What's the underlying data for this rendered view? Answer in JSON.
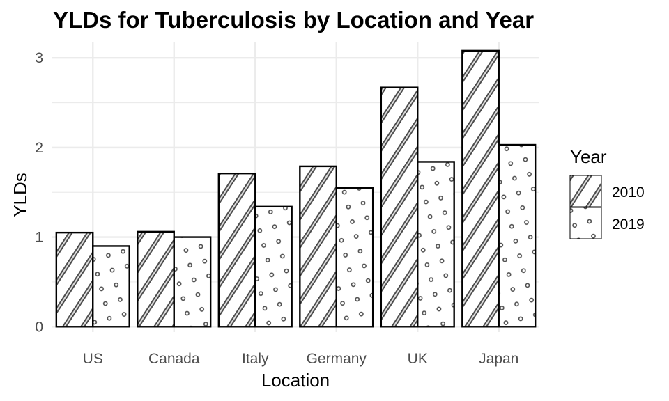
{
  "chart_data": {
    "type": "bar",
    "title": "YLDs for Tuberculosis by Location and Year",
    "xlabel": "Location",
    "ylabel": "YLDs",
    "categories": [
      "US",
      "Canada",
      "Italy",
      "Germany",
      "UK",
      "Japan"
    ],
    "series": [
      {
        "name": "2010",
        "values": [
          1.05,
          1.06,
          1.71,
          1.79,
          2.67,
          3.08
        ],
        "pattern": "stripe"
      },
      {
        "name": "2019",
        "values": [
          0.9,
          1.0,
          1.34,
          1.55,
          1.84,
          2.03
        ],
        "pattern": "dots"
      }
    ],
    "yticks": [
      "0",
      "1",
      "2",
      "3"
    ],
    "ylim": [
      -0.06,
      3.18
    ],
    "grid": true,
    "legend": {
      "title": "Year",
      "placement": "right"
    },
    "colors": {
      "fill": "#ffffff",
      "outline": "#000000",
      "grid": "#ebebeb",
      "pattern": "#4d4d4d"
    }
  }
}
